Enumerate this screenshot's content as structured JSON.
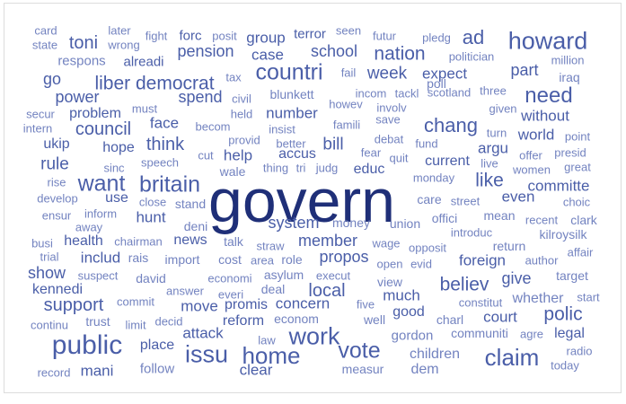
{
  "colors": {
    "large": "#1f2f78",
    "medium": "#4a5ea8",
    "small": "#7383c0",
    "faint": "#8e9bcc"
  },
  "words": [
    {
      "text": "card",
      "color": "small"
    },
    {
      "text": "later",
      "color": "small"
    },
    {
      "text": "fight",
      "color": "small"
    },
    {
      "text": "forc",
      "color": "medium"
    },
    {
      "text": "posit",
      "color": "small"
    },
    {
      "text": "group",
      "color": "medium"
    },
    {
      "text": "terror",
      "color": "medium"
    },
    {
      "text": "seen",
      "color": "small"
    },
    {
      "text": "futur",
      "color": "small"
    },
    {
      "text": "pledg",
      "color": "small"
    },
    {
      "text": "ad",
      "color": "medium"
    },
    {
      "text": "howard",
      "color": "medium"
    },
    {
      "text": "state",
      "color": "small"
    },
    {
      "text": "wrong",
      "color": "small"
    },
    {
      "text": "toni",
      "color": "medium"
    },
    {
      "text": "pension",
      "color": "medium"
    },
    {
      "text": "case",
      "color": "medium"
    },
    {
      "text": "school",
      "color": "medium"
    },
    {
      "text": "nation",
      "color": "medium"
    },
    {
      "text": "politician",
      "color": "small"
    },
    {
      "text": "million",
      "color": "small"
    },
    {
      "text": "respons",
      "color": "small"
    },
    {
      "text": "alreadi",
      "color": "medium"
    },
    {
      "text": "countri",
      "color": "medium"
    },
    {
      "text": "fail",
      "color": "small"
    },
    {
      "text": "week",
      "color": "medium"
    },
    {
      "text": "expect",
      "color": "medium"
    },
    {
      "text": "part",
      "color": "medium"
    },
    {
      "text": "tax",
      "color": "small"
    },
    {
      "text": "iraq",
      "color": "small"
    },
    {
      "text": "go",
      "color": "medium"
    },
    {
      "text": "liber democrat",
      "color": "medium"
    },
    {
      "text": "poll",
      "color": "small"
    },
    {
      "text": "need",
      "color": "medium"
    },
    {
      "text": "power",
      "color": "medium"
    },
    {
      "text": "spend",
      "color": "medium"
    },
    {
      "text": "civil",
      "color": "small"
    },
    {
      "text": "blunkett",
      "color": "small"
    },
    {
      "text": "incom",
      "color": "small"
    },
    {
      "text": "tackl",
      "color": "small"
    },
    {
      "text": "scotland",
      "color": "small"
    },
    {
      "text": "three",
      "color": "small"
    },
    {
      "text": "must",
      "color": "small"
    },
    {
      "text": "howev",
      "color": "small"
    },
    {
      "text": "involv",
      "color": "small"
    },
    {
      "text": "given",
      "color": "small"
    },
    {
      "text": "secur",
      "color": "small"
    },
    {
      "text": "problem",
      "color": "medium"
    },
    {
      "text": "held",
      "color": "small"
    },
    {
      "text": "number",
      "color": "medium"
    },
    {
      "text": "chang",
      "color": "medium"
    },
    {
      "text": "without",
      "color": "medium"
    },
    {
      "text": "intern",
      "color": "small"
    },
    {
      "text": "council",
      "color": "medium"
    },
    {
      "text": "face",
      "color": "medium"
    },
    {
      "text": "becom",
      "color": "small"
    },
    {
      "text": "insist",
      "color": "small"
    },
    {
      "text": "famili",
      "color": "small"
    },
    {
      "text": "save",
      "color": "small"
    },
    {
      "text": "turn",
      "color": "small"
    },
    {
      "text": "world",
      "color": "medium"
    },
    {
      "text": "point",
      "color": "small"
    },
    {
      "text": "ukip",
      "color": "medium"
    },
    {
      "text": "hope",
      "color": "medium"
    },
    {
      "text": "think",
      "color": "medium"
    },
    {
      "text": "provid",
      "color": "small"
    },
    {
      "text": "better",
      "color": "small"
    },
    {
      "text": "bill",
      "color": "medium"
    },
    {
      "text": "debat",
      "color": "small"
    },
    {
      "text": "fund",
      "color": "small"
    },
    {
      "text": "argu",
      "color": "medium"
    },
    {
      "text": "presid",
      "color": "small"
    },
    {
      "text": "cut",
      "color": "small"
    },
    {
      "text": "help",
      "color": "medium"
    },
    {
      "text": "accus",
      "color": "medium"
    },
    {
      "text": "fear",
      "color": "small"
    },
    {
      "text": "quit",
      "color": "small"
    },
    {
      "text": "offer",
      "color": "small"
    },
    {
      "text": "rule",
      "color": "medium"
    },
    {
      "text": "sinc",
      "color": "small"
    },
    {
      "text": "speech",
      "color": "small"
    },
    {
      "text": "thing",
      "color": "small"
    },
    {
      "text": "tri",
      "color": "small"
    },
    {
      "text": "judg",
      "color": "small"
    },
    {
      "text": "educ",
      "color": "medium"
    },
    {
      "text": "current",
      "color": "medium"
    },
    {
      "text": "live",
      "color": "small"
    },
    {
      "text": "women",
      "color": "small"
    },
    {
      "text": "great",
      "color": "small"
    },
    {
      "text": "want",
      "color": "medium"
    },
    {
      "text": "britain",
      "color": "medium"
    },
    {
      "text": "wale",
      "color": "small"
    },
    {
      "text": "like",
      "color": "medium"
    },
    {
      "text": "rise",
      "color": "small"
    },
    {
      "text": "monday",
      "color": "small"
    },
    {
      "text": "committe",
      "color": "medium"
    },
    {
      "text": "govern",
      "color": "large"
    },
    {
      "text": "develop",
      "color": "small"
    },
    {
      "text": "use",
      "color": "medium"
    },
    {
      "text": "close",
      "color": "small"
    },
    {
      "text": "care",
      "color": "small"
    },
    {
      "text": "street",
      "color": "small"
    },
    {
      "text": "even",
      "color": "medium"
    },
    {
      "text": "choic",
      "color": "small"
    },
    {
      "text": "ensur",
      "color": "small"
    },
    {
      "text": "inform",
      "color": "small"
    },
    {
      "text": "stand",
      "color": "small"
    },
    {
      "text": "hunt",
      "color": "medium"
    },
    {
      "text": "mean",
      "color": "small"
    },
    {
      "text": "clark",
      "color": "small"
    },
    {
      "text": "away",
      "color": "small"
    },
    {
      "text": "deni",
      "color": "small"
    },
    {
      "text": "system",
      "color": "medium"
    },
    {
      "text": "money",
      "color": "small"
    },
    {
      "text": "union",
      "color": "small"
    },
    {
      "text": "offici",
      "color": "small"
    },
    {
      "text": "recent",
      "color": "small"
    },
    {
      "text": "busi",
      "color": "small"
    },
    {
      "text": "health",
      "color": "medium"
    },
    {
      "text": "chairman",
      "color": "small"
    },
    {
      "text": "news",
      "color": "medium"
    },
    {
      "text": "talk",
      "color": "small"
    },
    {
      "text": "member",
      "color": "medium"
    },
    {
      "text": "wage",
      "color": "small"
    },
    {
      "text": "introduc",
      "color": "small"
    },
    {
      "text": "kilroysilk",
      "color": "small"
    },
    {
      "text": "trial",
      "color": "small"
    },
    {
      "text": "includ",
      "color": "medium"
    },
    {
      "text": "rais",
      "color": "small"
    },
    {
      "text": "import",
      "color": "small"
    },
    {
      "text": "cost",
      "color": "small"
    },
    {
      "text": "straw",
      "color": "small"
    },
    {
      "text": "area",
      "color": "small"
    },
    {
      "text": "role",
      "color": "small"
    },
    {
      "text": "opposit",
      "color": "small"
    },
    {
      "text": "return",
      "color": "small"
    },
    {
      "text": "affair",
      "color": "small"
    },
    {
      "text": "show",
      "color": "medium"
    },
    {
      "text": "suspect",
      "color": "small"
    },
    {
      "text": "david",
      "color": "small"
    },
    {
      "text": "asylum",
      "color": "small"
    },
    {
      "text": "propos",
      "color": "medium"
    },
    {
      "text": "open",
      "color": "small"
    },
    {
      "text": "evid",
      "color": "small"
    },
    {
      "text": "foreign",
      "color": "medium"
    },
    {
      "text": "author",
      "color": "small"
    },
    {
      "text": "kennedi",
      "color": "medium"
    },
    {
      "text": "economi",
      "color": "small"
    },
    {
      "text": "execut",
      "color": "small"
    },
    {
      "text": "give",
      "color": "medium"
    },
    {
      "text": "target",
      "color": "small"
    },
    {
      "text": "support",
      "color": "medium"
    },
    {
      "text": "answer",
      "color": "small"
    },
    {
      "text": "everi",
      "color": "small"
    },
    {
      "text": "deal",
      "color": "small"
    },
    {
      "text": "local",
      "color": "medium"
    },
    {
      "text": "view",
      "color": "small"
    },
    {
      "text": "believ",
      "color": "medium"
    },
    {
      "text": "whether",
      "color": "small"
    },
    {
      "text": "start",
      "color": "small"
    },
    {
      "text": "commit",
      "color": "small"
    },
    {
      "text": "move",
      "color": "medium"
    },
    {
      "text": "promis",
      "color": "medium"
    },
    {
      "text": "concern",
      "color": "medium"
    },
    {
      "text": "five",
      "color": "small"
    },
    {
      "text": "much",
      "color": "medium"
    },
    {
      "text": "polic",
      "color": "medium"
    },
    {
      "text": "continu",
      "color": "small"
    },
    {
      "text": "trust",
      "color": "small"
    },
    {
      "text": "limit",
      "color": "small"
    },
    {
      "text": "decid",
      "color": "small"
    },
    {
      "text": "reform",
      "color": "medium"
    },
    {
      "text": "econom",
      "color": "small"
    },
    {
      "text": "work",
      "color": "medium"
    },
    {
      "text": "well",
      "color": "small"
    },
    {
      "text": "good",
      "color": "medium"
    },
    {
      "text": "charl",
      "color": "small"
    },
    {
      "text": "court",
      "color": "medium"
    },
    {
      "text": "constitut",
      "color": "small"
    },
    {
      "text": "public",
      "color": "medium"
    },
    {
      "text": "attack",
      "color": "medium"
    },
    {
      "text": "communiti",
      "color": "small"
    },
    {
      "text": "agre",
      "color": "small"
    },
    {
      "text": "legal",
      "color": "medium"
    },
    {
      "text": "place",
      "color": "medium"
    },
    {
      "text": "issu",
      "color": "medium"
    },
    {
      "text": "home",
      "color": "medium"
    },
    {
      "text": "law",
      "color": "small"
    },
    {
      "text": "vote",
      "color": "medium"
    },
    {
      "text": "gordon",
      "color": "small"
    },
    {
      "text": "radio",
      "color": "small"
    },
    {
      "text": "children",
      "color": "small"
    },
    {
      "text": "claim",
      "color": "medium"
    },
    {
      "text": "record",
      "color": "small"
    },
    {
      "text": "mani",
      "color": "medium"
    },
    {
      "text": "follow",
      "color": "small"
    },
    {
      "text": "clear",
      "color": "medium"
    },
    {
      "text": "measur",
      "color": "small"
    },
    {
      "text": "dem",
      "color": "small"
    },
    {
      "text": "today",
      "color": "small"
    }
  ]
}
